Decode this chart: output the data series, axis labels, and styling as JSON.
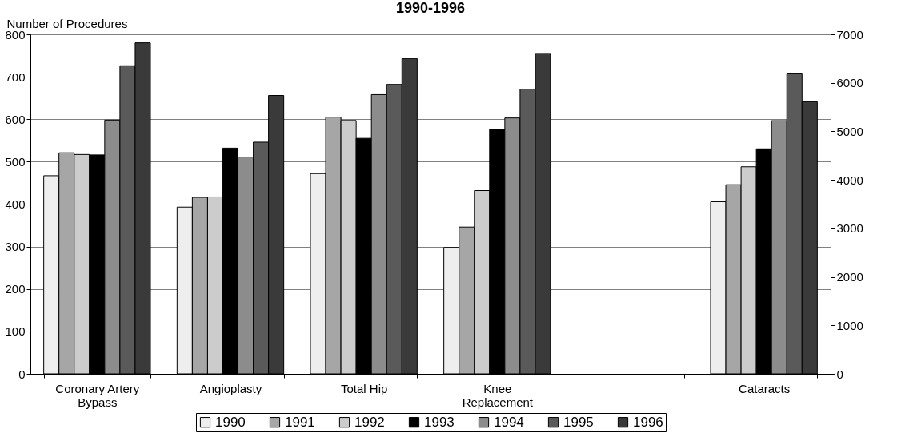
{
  "chart_data": {
    "type": "bar",
    "title": "1990-1996",
    "ylabel": "Number of Procedures",
    "categories": [
      "Coronary Artery Bypass",
      "Angioplasty",
      "Total Hip",
      "Knee Replacement",
      null,
      "Cataracts"
    ],
    "series": [
      {
        "name": "1990",
        "color": "#eeeeee",
        "values": [
          467,
          393,
          472,
          298,
          null,
          null
        ]
      },
      {
        "name": "1991",
        "color": "#a6a6a6",
        "values": [
          521,
          416,
          605,
          346,
          null,
          null
        ]
      },
      {
        "name": "1992",
        "color": "#cccccc",
        "values": [
          517,
          417,
          597,
          432,
          null,
          null
        ]
      },
      {
        "name": "1993",
        "color": "#000000",
        "values": [
          516,
          532,
          555,
          576,
          null,
          null
        ]
      },
      {
        "name": "1994",
        "color": "#8c8c8c",
        "values": [
          598,
          511,
          658,
          603,
          null,
          null
        ]
      },
      {
        "name": "1995",
        "color": "#5a5a5a",
        "values": [
          726,
          546,
          682,
          671,
          null,
          null
        ]
      },
      {
        "name": "1996",
        "color": "#3a3a3a",
        "values": [
          780,
          656,
          743,
          755,
          null,
          null
        ]
      },
      {
        "color": "#eeeeee",
        "axis": "y2",
        "values": [
          null,
          null,
          null,
          null,
          null,
          3550
        ]
      },
      {
        "color": "#a6a6a6",
        "axis": "y2",
        "values": [
          null,
          null,
          null,
          null,
          null,
          3900
        ]
      },
      {
        "color": "#cccccc",
        "axis": "y2",
        "values": [
          null,
          null,
          null,
          null,
          null,
          4270
        ]
      },
      {
        "color": "#000000",
        "axis": "y2",
        "values": [
          null,
          null,
          null,
          null,
          null,
          4640
        ]
      },
      {
        "color": "#8c8c8c",
        "axis": "y2",
        "values": [
          null,
          null,
          null,
          null,
          null,
          5220
        ]
      },
      {
        "color": "#5a5a5a",
        "axis": "y2",
        "values": [
          null,
          null,
          null,
          null,
          null,
          6200
        ]
      },
      {
        "color": "#3a3a3a",
        "axis": "y2",
        "values": [
          null,
          null,
          null,
          null,
          null,
          5610
        ]
      }
    ],
    "ylim": [
      0,
      800
    ],
    "yticks": [
      0,
      100,
      200,
      300,
      400,
      500,
      600,
      700,
      800
    ],
    "y2lim": [
      0,
      7000
    ],
    "y2ticks": [
      0,
      1000,
      2000,
      3000,
      4000,
      5000,
      6000,
      7000
    ],
    "grid": "y",
    "legend": "bottom"
  }
}
